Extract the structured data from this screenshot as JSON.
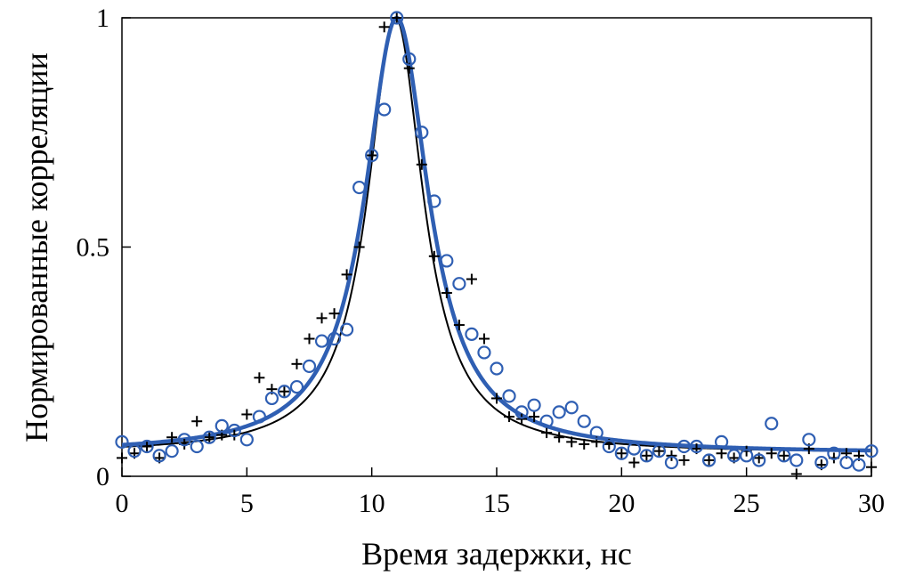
{
  "chart_data": {
    "type": "scatter",
    "title": "",
    "xlabel": "Время задержки, нс",
    "ylabel": "Нормированные корреляции",
    "xlim": [
      0,
      30
    ],
    "ylim": [
      0,
      1
    ],
    "x_ticks": [
      0,
      5,
      10,
      15,
      20,
      25,
      30
    ],
    "x_tick_labels": [
      "0",
      "5",
      "10",
      "15",
      "20",
      "25",
      "30"
    ],
    "y_ticks": [
      0,
      0.5,
      1
    ],
    "y_tick_labels": [
      "0",
      "0.5",
      "1"
    ],
    "grid": false,
    "legend": "none",
    "series": [
      {
        "name": "crosses",
        "marker": "plus",
        "color": "#000000",
        "points": [
          [
            0,
            0.04
          ],
          [
            0.5,
            0.05
          ],
          [
            1,
            0.065
          ],
          [
            1.5,
            0.04
          ],
          [
            2,
            0.085
          ],
          [
            2.5,
            0.07
          ],
          [
            3,
            0.12
          ],
          [
            3.5,
            0.085
          ],
          [
            4,
            0.09
          ],
          [
            4.5,
            0.09
          ],
          [
            5,
            0.135
          ],
          [
            5.5,
            0.215
          ],
          [
            6,
            0.19
          ],
          [
            6.5,
            0.185
          ],
          [
            7,
            0.245
          ],
          [
            7.5,
            0.3
          ],
          [
            8,
            0.345
          ],
          [
            8.5,
            0.355
          ],
          [
            9,
            0.44
          ],
          [
            9.5,
            0.5
          ],
          [
            10,
            0.7
          ],
          [
            10.5,
            0.98
          ],
          [
            11,
            1.0
          ],
          [
            11.5,
            0.89
          ],
          [
            12,
            0.68
          ],
          [
            12.5,
            0.48
          ],
          [
            13,
            0.4
          ],
          [
            13.5,
            0.33
          ],
          [
            14,
            0.43
          ],
          [
            14.5,
            0.3
          ],
          [
            15,
            0.17
          ],
          [
            15.5,
            0.13
          ],
          [
            16,
            0.125
          ],
          [
            16.5,
            0.13
          ],
          [
            17,
            0.095
          ],
          [
            17.5,
            0.085
          ],
          [
            18,
            0.075
          ],
          [
            18.5,
            0.07
          ],
          [
            19,
            0.075
          ],
          [
            19.5,
            0.07
          ],
          [
            20,
            0.05
          ],
          [
            20.5,
            0.03
          ],
          [
            21,
            0.045
          ],
          [
            21.5,
            0.055
          ],
          [
            22,
            0.045
          ],
          [
            22.5,
            0.035
          ],
          [
            23,
            0.06
          ],
          [
            23.5,
            0.035
          ],
          [
            24,
            0.05
          ],
          [
            24.5,
            0.04
          ],
          [
            25,
            0.055
          ],
          [
            25.5,
            0.04
          ],
          [
            26,
            0.05
          ],
          [
            26.5,
            0.045
          ],
          [
            27,
            0.005
          ],
          [
            27.5,
            0.06
          ],
          [
            28,
            0.025
          ],
          [
            28.5,
            0.04
          ],
          [
            29,
            0.05
          ],
          [
            29.5,
            0.045
          ],
          [
            30,
            0.02
          ]
        ]
      },
      {
        "name": "circles",
        "marker": "circle",
        "color": "#2f5fb3",
        "points": [
          [
            0,
            0.075
          ],
          [
            0.5,
            0.055
          ],
          [
            1,
            0.065
          ],
          [
            1.5,
            0.045
          ],
          [
            2,
            0.055
          ],
          [
            2.5,
            0.08
          ],
          [
            3,
            0.065
          ],
          [
            3.5,
            0.085
          ],
          [
            4,
            0.11
          ],
          [
            4.5,
            0.1
          ],
          [
            5,
            0.08
          ],
          [
            5.5,
            0.13
          ],
          [
            6,
            0.17
          ],
          [
            6.5,
            0.185
          ],
          [
            7,
            0.195
          ],
          [
            7.5,
            0.24
          ],
          [
            8,
            0.295
          ],
          [
            8.5,
            0.3
          ],
          [
            9,
            0.32
          ],
          [
            9.5,
            0.63
          ],
          [
            10,
            0.7
          ],
          [
            10.5,
            0.8
          ],
          [
            11,
            1.0
          ],
          [
            11.5,
            0.91
          ],
          [
            12,
            0.75
          ],
          [
            12.5,
            0.6
          ],
          [
            13,
            0.47
          ],
          [
            13.5,
            0.42
          ],
          [
            14,
            0.31
          ],
          [
            14.5,
            0.27
          ],
          [
            15,
            0.235
          ],
          [
            15.5,
            0.175
          ],
          [
            16,
            0.14
          ],
          [
            16.5,
            0.155
          ],
          [
            17,
            0.12
          ],
          [
            17.5,
            0.14
          ],
          [
            18,
            0.15
          ],
          [
            18.5,
            0.12
          ],
          [
            19,
            0.095
          ],
          [
            19.5,
            0.065
          ],
          [
            20,
            0.05
          ],
          [
            20.5,
            0.06
          ],
          [
            21,
            0.045
          ],
          [
            21.5,
            0.055
          ],
          [
            22,
            0.03
          ],
          [
            22.5,
            0.065
          ],
          [
            23,
            0.065
          ],
          [
            23.5,
            0.035
          ],
          [
            24,
            0.075
          ],
          [
            24.5,
            0.045
          ],
          [
            25,
            0.045
          ],
          [
            25.5,
            0.035
          ],
          [
            26,
            0.115
          ],
          [
            26.5,
            0.045
          ],
          [
            27,
            0.035
          ],
          [
            27.5,
            0.08
          ],
          [
            28,
            0.03
          ],
          [
            28.5,
            0.05
          ],
          [
            29,
            0.03
          ],
          [
            29.5,
            0.025
          ],
          [
            30,
            0.055
          ]
        ]
      }
    ],
    "fits": [
      {
        "name": "fit-crosses",
        "color": "#000000",
        "model": "lorentzian",
        "center": 10.95,
        "half_width": 1.35,
        "baseline": 0.05,
        "amplitude": 0.95
      },
      {
        "name": "fit-circles",
        "color": "#2f5fb3",
        "model": "lorentzian",
        "center": 11.0,
        "half_width": 1.55,
        "baseline": 0.05,
        "amplitude": 0.95
      }
    ]
  }
}
